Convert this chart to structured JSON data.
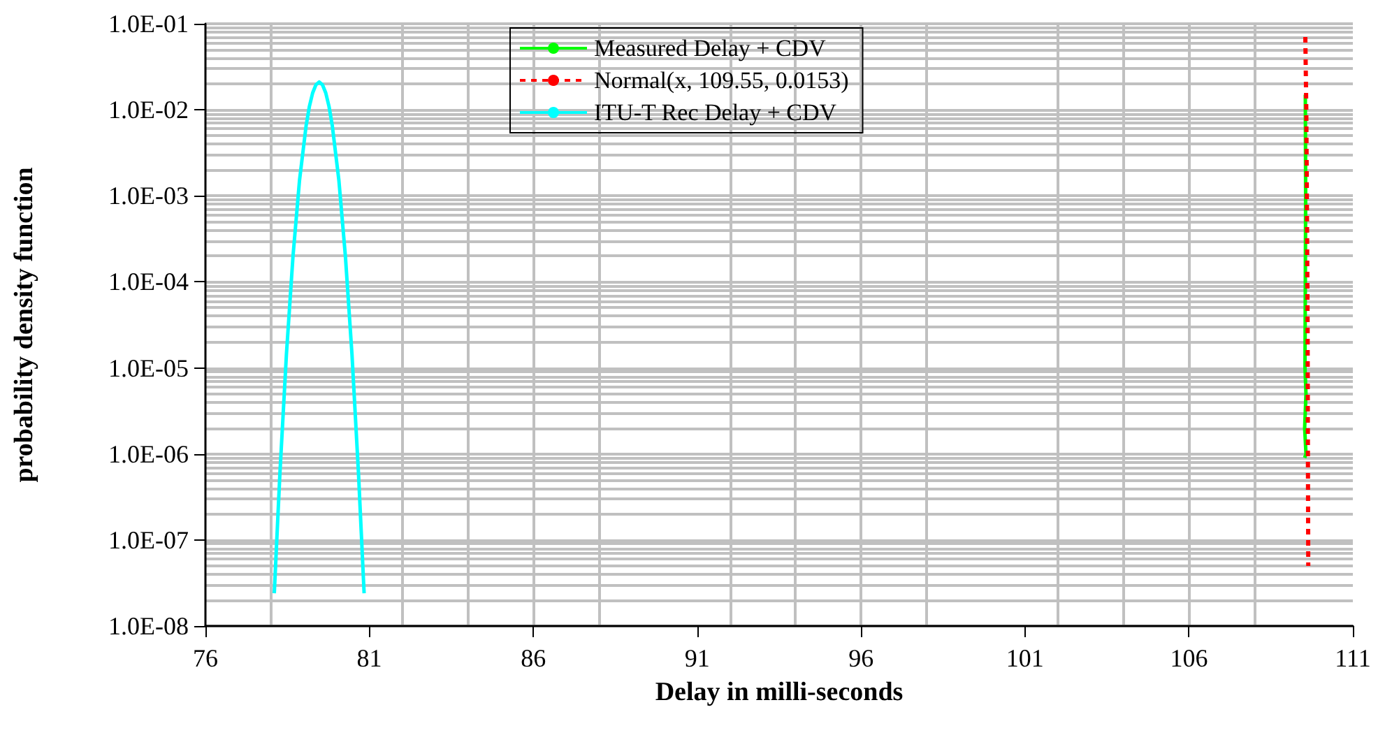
{
  "chart_data": {
    "type": "line",
    "xlabel": "Delay in milli-seconds",
    "ylabel": "probability density function",
    "xlim": [
      76,
      111
    ],
    "xticks": [
      76,
      81,
      86,
      91,
      96,
      101,
      106,
      111
    ],
    "ylim": [
      1e-08,
      0.1
    ],
    "log": "y",
    "grid": true,
    "legend": "top",
    "marker": "none",
    "yticks": [
      {
        "value": 1e-08,
        "label": "1.0E-08"
      },
      {
        "value": 1e-07,
        "label": "1.0E-07"
      },
      {
        "value": 1e-06,
        "label": "1.0E-06"
      },
      {
        "value": 1e-05,
        "label": "1.0E-05"
      },
      {
        "value": 0.0001,
        "label": "1.0E-04"
      },
      {
        "value": 0.001,
        "label": "1.0E-03"
      },
      {
        "value": 0.01,
        "label": "1.0E-02"
      },
      {
        "value": 0.1,
        "label": "1.0E-01"
      }
    ],
    "series": [
      {
        "name": "Measured Delay + CDV",
        "color": "#00ff00",
        "line_style": "solid",
        "x": [
          109.55,
          109.56,
          109.55,
          109.54,
          109.57,
          109.53,
          109.57,
          109.53
        ],
        "values": [
          0.015,
          0.001,
          0.0001,
          1e-05,
          5e-06,
          2e-06,
          1e-06,
          9e-07
        ]
      },
      {
        "name": "Normal(x, 109.55, 0.0153)",
        "color": "#ff0000",
        "line_style": "dashed",
        "x": [
          109.55,
          109.58,
          109.6,
          109.62,
          109.63,
          109.64
        ],
        "values": [
          0.07,
          0.01,
          0.0007,
          3e-05,
          8e-07,
          5e-08
        ]
      },
      {
        "name": "ITU-T Rec Delay + CDV",
        "color": "#00ffff",
        "line_style": "solid",
        "x": [
          78.1,
          78.27,
          78.47,
          78.67,
          78.87,
          79.07,
          79.17,
          79.27,
          79.37,
          79.47,
          79.57,
          79.67,
          79.77,
          79.87,
          80.07,
          80.27,
          80.47,
          80.67,
          80.84
        ],
        "values": [
          2.4e-08,
          5.8e-07,
          1.43e-05,
          0.000197,
          0.00152,
          0.0065,
          0.0109,
          0.0157,
          0.0195,
          0.021,
          0.0195,
          0.0157,
          0.0109,
          0.0065,
          0.00152,
          0.000197,
          1.43e-05,
          5.8e-07,
          2.4e-08
        ]
      }
    ]
  }
}
